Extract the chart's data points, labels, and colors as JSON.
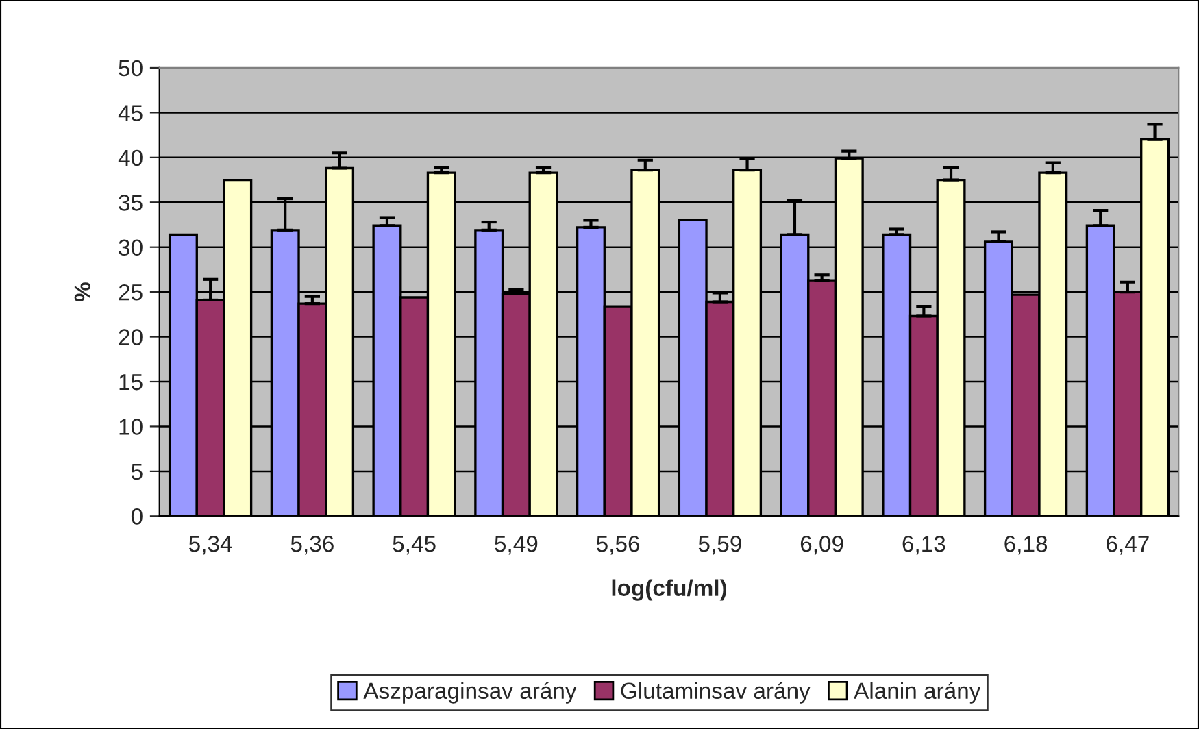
{
  "chart_data": {
    "type": "bar",
    "xlabel": "log(cfu/ml)",
    "ylabel": "%",
    "categories": [
      "5,34",
      "5,36",
      "5,45",
      "5,49",
      "5,56",
      "5,59",
      "6,09",
      "6,13",
      "6,18",
      "6,47"
    ],
    "series": [
      {
        "name": "Aszparaginsav arány",
        "color": "#9999ff",
        "values": [
          31.4,
          31.9,
          32.4,
          31.9,
          32.2,
          33.0,
          31.4,
          31.4,
          30.6,
          32.4
        ],
        "errors": [
          null,
          [
            31.9,
            35.4
          ],
          [
            32.4,
            33.3
          ],
          [
            31.9,
            32.8
          ],
          [
            32.2,
            33.0
          ],
          null,
          [
            31.4,
            35.2
          ],
          [
            31.4,
            32.0
          ],
          [
            30.6,
            31.7
          ],
          [
            32.4,
            34.1
          ]
        ]
      },
      {
        "name": "Glutaminsav arány",
        "color": "#993366",
        "values": [
          24.1,
          23.7,
          24.4,
          24.8,
          23.4,
          23.9,
          26.3,
          22.3,
          24.7,
          25.0
        ],
        "errors": [
          [
            24.1,
            26.4
          ],
          [
            23.7,
            24.5
          ],
          null,
          [
            24.8,
            25.3
          ],
          null,
          [
            23.9,
            24.9
          ],
          [
            26.3,
            26.9
          ],
          [
            22.3,
            23.4
          ],
          null,
          [
            25.0,
            26.1
          ]
        ]
      },
      {
        "name": "Alanin arány",
        "color": "#ffffcc",
        "values": [
          37.5,
          38.8,
          38.3,
          38.3,
          38.6,
          38.6,
          39.9,
          37.5,
          38.3,
          42.0
        ],
        "errors": [
          null,
          [
            38.8,
            40.5
          ],
          [
            38.3,
            38.9
          ],
          [
            38.3,
            38.9
          ],
          [
            38.6,
            39.7
          ],
          [
            38.6,
            39.9
          ],
          [
            39.9,
            40.7
          ],
          [
            37.5,
            38.9
          ],
          [
            38.3,
            39.4
          ],
          [
            42.0,
            43.7
          ]
        ]
      }
    ],
    "ylim": [
      0,
      50
    ],
    "yticks": [
      0,
      5,
      10,
      15,
      20,
      25,
      30,
      35,
      40,
      45,
      50
    ],
    "grid": "y",
    "legend": "bottom"
  }
}
